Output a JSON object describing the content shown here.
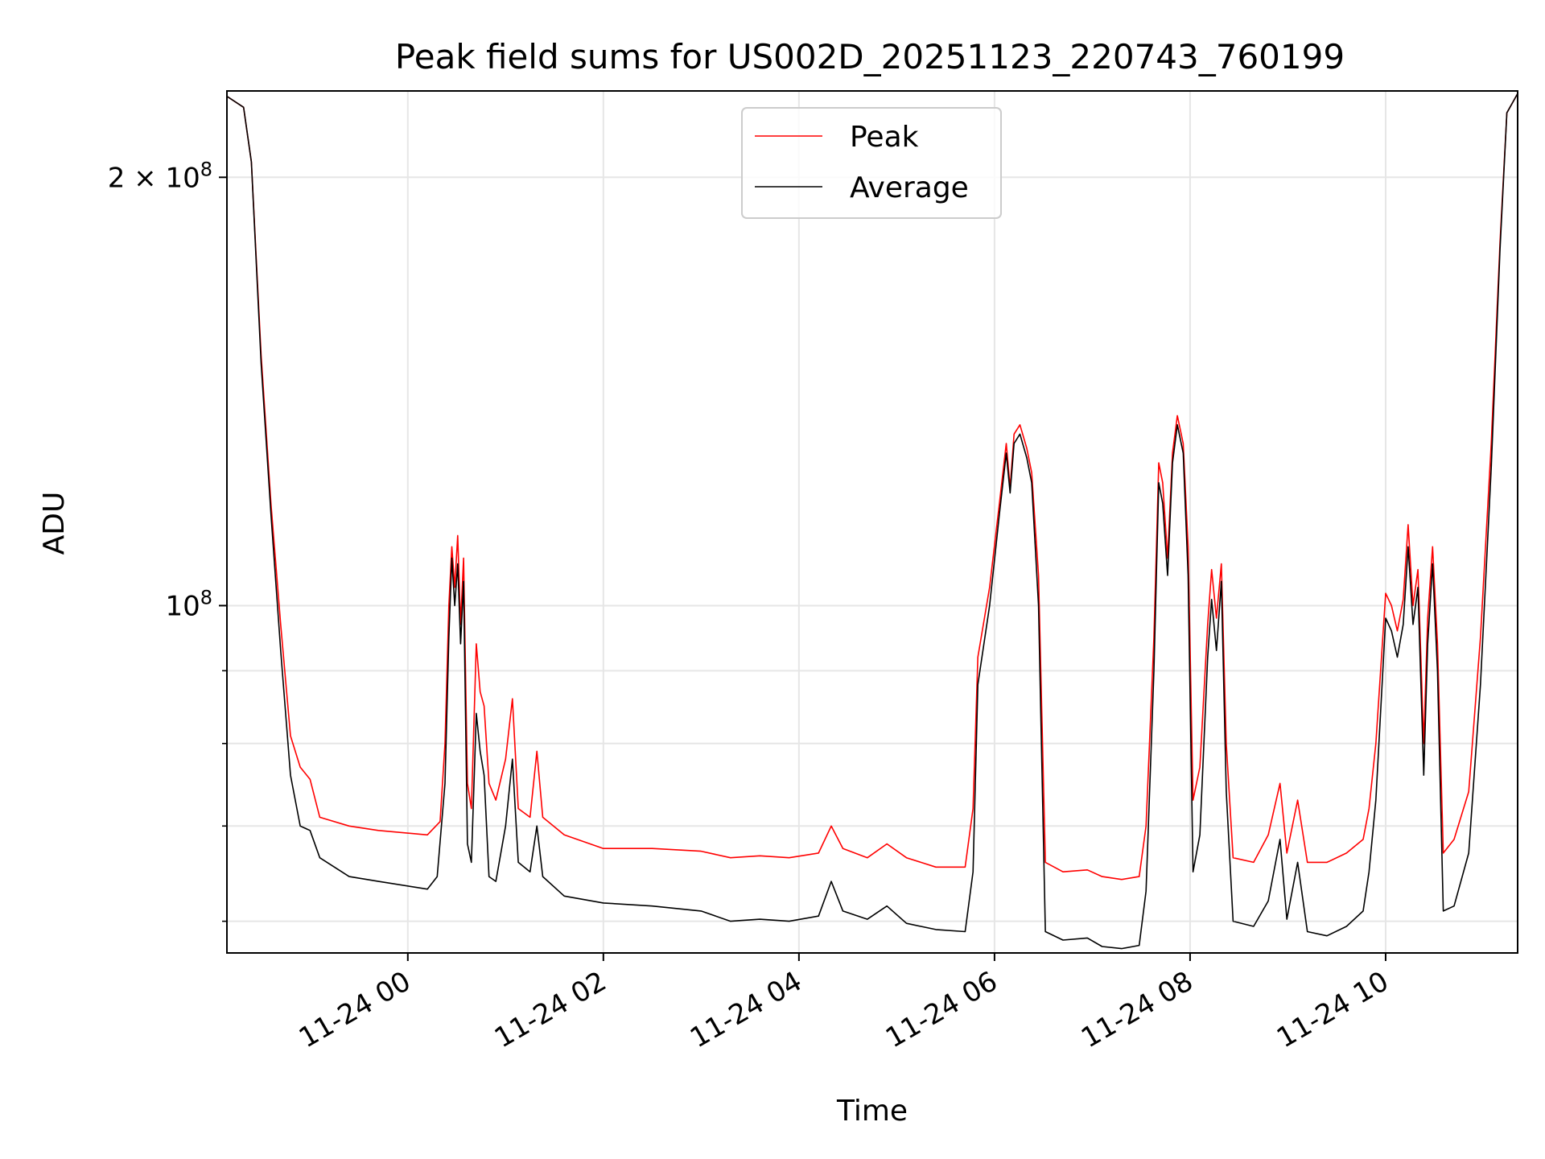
{
  "chart_data": {
    "type": "line",
    "title": "Peak field sums for US002D_20251123_220743_760199",
    "xlabel": "Time",
    "ylabel": "ADU",
    "yscale": "log",
    "xlim": [
      -1.85,
      11.35
    ],
    "ylim": [
      57000000,
      230000000
    ],
    "grid": true,
    "legend_position": "upper-center",
    "x_units": "hours relative to 11-24 00:00",
    "xticks": [
      {
        "value": 0,
        "label": "11-24 00"
      },
      {
        "value": 2,
        "label": "11-24 02"
      },
      {
        "value": 4,
        "label": "11-24 04"
      },
      {
        "value": 6,
        "label": "11-24 06"
      },
      {
        "value": 8,
        "label": "11-24 08"
      },
      {
        "value": 10,
        "label": "11-24 10"
      }
    ],
    "yticks_major": [
      {
        "value": 100000000,
        "base": "10",
        "exp": "8",
        "prefix": ""
      },
      {
        "value": 200000000,
        "base": "10",
        "exp": "8",
        "prefix": "2 × "
      }
    ],
    "yticks_minor": [
      60000000,
      70000000,
      80000000,
      90000000
    ],
    "series": [
      {
        "name": "Peak",
        "color": "#ff0000",
        "points": [
          [
            -1.85,
            228000000
          ],
          [
            -1.68,
            224000000
          ],
          [
            -1.6,
            205000000
          ],
          [
            -1.5,
            150000000
          ],
          [
            -1.4,
            118000000
          ],
          [
            -1.3,
            97000000
          ],
          [
            -1.2,
            81000000
          ],
          [
            -1.1,
            77000000
          ],
          [
            -1.0,
            75500000
          ],
          [
            -0.9,
            71000000
          ],
          [
            -0.6,
            70000000
          ],
          [
            -0.3,
            69500000
          ],
          [
            0.2,
            69000000
          ],
          [
            0.33,
            70500000
          ],
          [
            0.38,
            80000000
          ],
          [
            0.42,
            100000000
          ],
          [
            0.45,
            110000000
          ],
          [
            0.48,
            103000000
          ],
          [
            0.51,
            112000000
          ],
          [
            0.54,
            97000000
          ],
          [
            0.57,
            108000000
          ],
          [
            0.61,
            75000000
          ],
          [
            0.65,
            72000000
          ],
          [
            0.7,
            94000000
          ],
          [
            0.74,
            87000000
          ],
          [
            0.78,
            85000000
          ],
          [
            0.83,
            75000000
          ],
          [
            0.9,
            73000000
          ],
          [
            1.0,
            78000000
          ],
          [
            1.07,
            86000000
          ],
          [
            1.13,
            72000000
          ],
          [
            1.25,
            71000000
          ],
          [
            1.32,
            79000000
          ],
          [
            1.38,
            71000000
          ],
          [
            1.6,
            69000000
          ],
          [
            2.0,
            67500000
          ],
          [
            2.5,
            67500000
          ],
          [
            3.0,
            67200000
          ],
          [
            3.3,
            66500000
          ],
          [
            3.6,
            66700000
          ],
          [
            3.9,
            66500000
          ],
          [
            4.2,
            67000000
          ],
          [
            4.33,
            70000000
          ],
          [
            4.45,
            67500000
          ],
          [
            4.7,
            66500000
          ],
          [
            4.9,
            68000000
          ],
          [
            5.1,
            66500000
          ],
          [
            5.4,
            65500000
          ],
          [
            5.7,
            65500000
          ],
          [
            5.78,
            72000000
          ],
          [
            5.83,
            92000000
          ],
          [
            5.95,
            103000000
          ],
          [
            6.05,
            118000000
          ],
          [
            6.12,
            130000000
          ],
          [
            6.16,
            121000000
          ],
          [
            6.2,
            132000000
          ],
          [
            6.26,
            134000000
          ],
          [
            6.33,
            129000000
          ],
          [
            6.38,
            124000000
          ],
          [
            6.45,
            105000000
          ],
          [
            6.52,
            66000000
          ],
          [
            6.7,
            65000000
          ],
          [
            6.95,
            65200000
          ],
          [
            7.1,
            64500000
          ],
          [
            7.3,
            64200000
          ],
          [
            7.48,
            64500000
          ],
          [
            7.55,
            70000000
          ],
          [
            7.63,
            95000000
          ],
          [
            7.68,
            126000000
          ],
          [
            7.72,
            122000000
          ],
          [
            7.77,
            108000000
          ],
          [
            7.82,
            128000000
          ],
          [
            7.87,
            136000000
          ],
          [
            7.93,
            130000000
          ],
          [
            7.98,
            110000000
          ],
          [
            8.03,
            73000000
          ],
          [
            8.1,
            77000000
          ],
          [
            8.18,
            97000000
          ],
          [
            8.22,
            106000000
          ],
          [
            8.27,
            98000000
          ],
          [
            8.32,
            107000000
          ],
          [
            8.37,
            80000000
          ],
          [
            8.44,
            66500000
          ],
          [
            8.65,
            66000000
          ],
          [
            8.8,
            69000000
          ],
          [
            8.92,
            75000000
          ],
          [
            8.99,
            67000000
          ],
          [
            9.1,
            73000000
          ],
          [
            9.2,
            66000000
          ],
          [
            9.4,
            66000000
          ],
          [
            9.6,
            67000000
          ],
          [
            9.77,
            68500000
          ],
          [
            9.83,
            72000000
          ],
          [
            9.9,
            80000000
          ],
          [
            10.0,
            102000000
          ],
          [
            10.06,
            100000000
          ],
          [
            10.12,
            96000000
          ],
          [
            10.18,
            101000000
          ],
          [
            10.23,
            114000000
          ],
          [
            10.28,
            100000000
          ],
          [
            10.33,
            106000000
          ],
          [
            10.39,
            80000000
          ],
          [
            10.43,
            98000000
          ],
          [
            10.48,
            110000000
          ],
          [
            10.53,
            94000000
          ],
          [
            10.59,
            67000000
          ],
          [
            10.7,
            68500000
          ],
          [
            10.85,
            74000000
          ],
          [
            10.97,
            95000000
          ],
          [
            11.08,
            130000000
          ],
          [
            11.17,
            180000000
          ],
          [
            11.24,
            222000000
          ],
          [
            11.35,
            229000000
          ]
        ]
      },
      {
        "name": "Average",
        "color": "#000000",
        "points": [
          [
            -1.85,
            228000000
          ],
          [
            -1.68,
            224000000
          ],
          [
            -1.6,
            205000000
          ],
          [
            -1.5,
            148000000
          ],
          [
            -1.4,
            116000000
          ],
          [
            -1.3,
            93000000
          ],
          [
            -1.2,
            76000000
          ],
          [
            -1.1,
            70000000
          ],
          [
            -1.0,
            69500000
          ],
          [
            -0.9,
            66500000
          ],
          [
            -0.6,
            64500000
          ],
          [
            -0.3,
            64000000
          ],
          [
            0.2,
            63200000
          ],
          [
            0.3,
            64500000
          ],
          [
            0.38,
            75000000
          ],
          [
            0.42,
            95000000
          ],
          [
            0.45,
            108000000
          ],
          [
            0.48,
            100000000
          ],
          [
            0.51,
            107000000
          ],
          [
            0.54,
            94000000
          ],
          [
            0.57,
            104000000
          ],
          [
            0.61,
            68000000
          ],
          [
            0.65,
            66000000
          ],
          [
            0.7,
            84000000
          ],
          [
            0.74,
            79000000
          ],
          [
            0.78,
            76000000
          ],
          [
            0.83,
            64500000
          ],
          [
            0.9,
            64000000
          ],
          [
            1.0,
            70000000
          ],
          [
            1.07,
            78000000
          ],
          [
            1.13,
            66000000
          ],
          [
            1.25,
            65000000
          ],
          [
            1.32,
            70000000
          ],
          [
            1.38,
            64500000
          ],
          [
            1.6,
            62500000
          ],
          [
            2.0,
            61800000
          ],
          [
            2.5,
            61500000
          ],
          [
            3.0,
            61000000
          ],
          [
            3.3,
            60000000
          ],
          [
            3.6,
            60200000
          ],
          [
            3.9,
            60000000
          ],
          [
            4.2,
            60500000
          ],
          [
            4.33,
            64000000
          ],
          [
            4.45,
            61000000
          ],
          [
            4.7,
            60200000
          ],
          [
            4.9,
            61500000
          ],
          [
            5.1,
            59800000
          ],
          [
            5.4,
            59200000
          ],
          [
            5.7,
            59000000
          ],
          [
            5.78,
            65000000
          ],
          [
            5.83,
            88000000
          ],
          [
            5.95,
            100000000
          ],
          [
            6.05,
            116000000
          ],
          [
            6.12,
            128000000
          ],
          [
            6.16,
            120000000
          ],
          [
            6.2,
            130000000
          ],
          [
            6.26,
            132000000
          ],
          [
            6.33,
            127000000
          ],
          [
            6.38,
            122000000
          ],
          [
            6.45,
            100000000
          ],
          [
            6.52,
            59000000
          ],
          [
            6.7,
            58200000
          ],
          [
            6.95,
            58400000
          ],
          [
            7.1,
            57600000
          ],
          [
            7.3,
            57400000
          ],
          [
            7.48,
            57700000
          ],
          [
            7.55,
            63000000
          ],
          [
            7.63,
            90000000
          ],
          [
            7.68,
            122000000
          ],
          [
            7.72,
            118000000
          ],
          [
            7.77,
            105000000
          ],
          [
            7.82,
            126000000
          ],
          [
            7.87,
            134000000
          ],
          [
            7.93,
            128000000
          ],
          [
            7.98,
            105000000
          ],
          [
            8.03,
            65000000
          ],
          [
            8.1,
            69000000
          ],
          [
            8.18,
            92000000
          ],
          [
            8.22,
            101000000
          ],
          [
            8.27,
            93000000
          ],
          [
            8.32,
            104000000
          ],
          [
            8.37,
            74000000
          ],
          [
            8.44,
            60000000
          ],
          [
            8.65,
            59500000
          ],
          [
            8.8,
            62000000
          ],
          [
            8.92,
            68500000
          ],
          [
            8.99,
            60200000
          ],
          [
            9.1,
            66000000
          ],
          [
            9.2,
            59000000
          ],
          [
            9.4,
            58600000
          ],
          [
            9.6,
            59500000
          ],
          [
            9.77,
            61000000
          ],
          [
            9.83,
            65000000
          ],
          [
            9.9,
            73000000
          ],
          [
            10.0,
            98000000
          ],
          [
            10.06,
            96000000
          ],
          [
            10.12,
            92000000
          ],
          [
            10.18,
            97000000
          ],
          [
            10.23,
            110000000
          ],
          [
            10.28,
            97000000
          ],
          [
            10.33,
            103000000
          ],
          [
            10.39,
            76000000
          ],
          [
            10.43,
            94000000
          ],
          [
            10.48,
            107000000
          ],
          [
            10.53,
            90000000
          ],
          [
            10.59,
            61000000
          ],
          [
            10.7,
            61500000
          ],
          [
            10.85,
            67000000
          ],
          [
            10.97,
            88000000
          ],
          [
            11.08,
            125000000
          ],
          [
            11.17,
            178000000
          ],
          [
            11.24,
            222000000
          ],
          [
            11.35,
            229000000
          ]
        ]
      }
    ]
  }
}
